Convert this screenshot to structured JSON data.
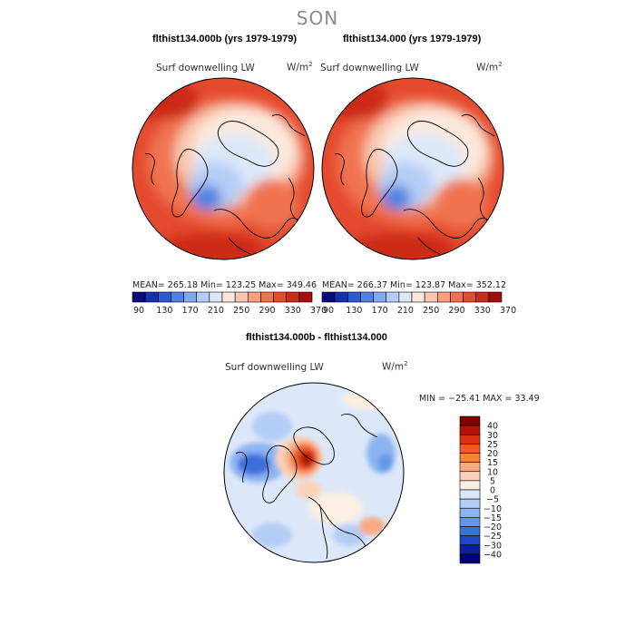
{
  "figure": {
    "season": "SON",
    "variable": "Surf downwelling LW",
    "units": "W/m",
    "units_sup": "2"
  },
  "chart_data": [
    {
      "type": "heatmap",
      "projection": "north polar stereographic",
      "title": "flthist134.000b (yrs 1979-1979)",
      "subtitle": "Surf downwelling LW",
      "units": "W/m2",
      "stats": {
        "mean": "265.18",
        "min": "123.25",
        "max": "349.46"
      },
      "stats_text": "MEAN= 265.18   Min= 123.25   Max= 349.46",
      "colorbar": {
        "orientation": "horizontal",
        "levels": [
          90,
          110,
          130,
          150,
          170,
          190,
          210,
          230,
          250,
          270,
          290,
          310,
          330,
          350,
          370
        ],
        "tick_labels": [
          "90",
          "130",
          "170",
          "210",
          "250",
          "290",
          "330",
          "370"
        ]
      }
    },
    {
      "type": "heatmap",
      "projection": "north polar stereographic",
      "title": "flthist134.000 (yrs 1979-1979)",
      "subtitle": "Surf downwelling LW",
      "units": "W/m2",
      "stats": {
        "mean": "266.37",
        "min": "123.87",
        "max": "352.12"
      },
      "stats_text": "MEAN= 266.37   Min= 123.87   Max= 352.12",
      "colorbar": {
        "orientation": "horizontal",
        "levels": [
          90,
          110,
          130,
          150,
          170,
          190,
          210,
          230,
          250,
          270,
          290,
          310,
          330,
          350,
          370
        ],
        "tick_labels": [
          "90",
          "130",
          "170",
          "210",
          "250",
          "290",
          "330",
          "370"
        ]
      }
    },
    {
      "type": "heatmap",
      "projection": "north polar stereographic",
      "title": "flthist134.000b - flthist134.000",
      "subtitle": "Surf downwelling LW",
      "units": "W/m2",
      "stats": {
        "min": "-25.41",
        "max": "33.49"
      },
      "stats_text": "MIN = −25.41 MAX =  33.49",
      "colorbar": {
        "orientation": "vertical",
        "levels": [
          40,
          30,
          25,
          20,
          15,
          10,
          5,
          0,
          -5,
          -10,
          -15,
          -20,
          -25,
          -30,
          -40
        ],
        "tick_labels": [
          "40",
          "30",
          "25",
          "20",
          "15",
          "10",
          "5",
          "0",
          "−5",
          "−10",
          "−15",
          "−20",
          "−25",
          "−30",
          "−40"
        ]
      }
    }
  ],
  "colors": {
    "abs_scale": [
      "#0a0a78",
      "#1432aa",
      "#2d5acd",
      "#5082e1",
      "#82aaf0",
      "#b4cdf5",
      "#dce8fa",
      "#fbe9de",
      "#f9c8b1",
      "#f6a07e",
      "#f07350",
      "#e44a2e",
      "#cc2b18",
      "#a40e0e"
    ],
    "diff_scale": [
      "#820000",
      "#b41405",
      "#dc3214",
      "#f05a28",
      "#f5823c",
      "#f8aa82",
      "#fbd2b9",
      "#fbeee3",
      "#dce8fa",
      "#b4cdf5",
      "#8cb4f0",
      "#6496e6",
      "#3c6edc",
      "#1e46c8",
      "#0a1ea0",
      "#00006e"
    ]
  }
}
